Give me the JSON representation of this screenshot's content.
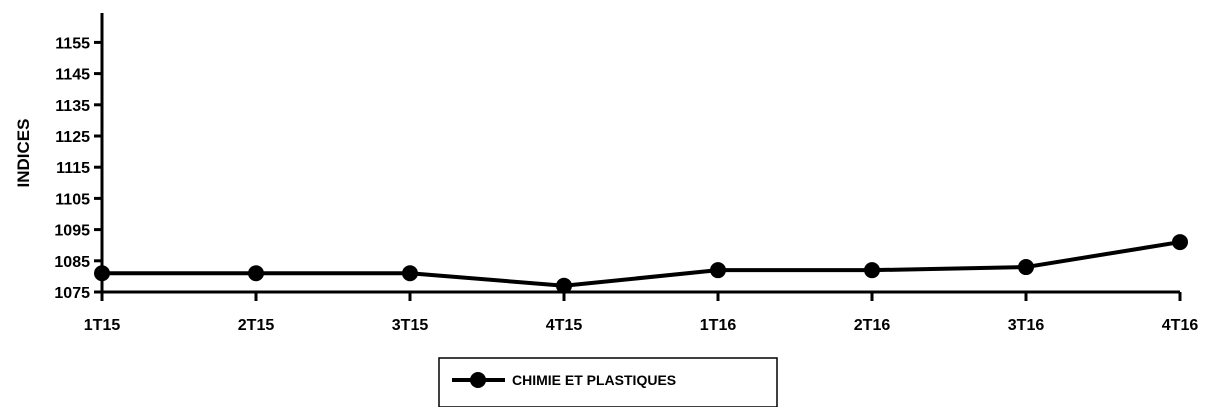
{
  "chart_data": {
    "type": "line",
    "title": "",
    "xlabel": "",
    "ylabel": "INDICES",
    "categories": [
      "1T15",
      "2T15",
      "3T15",
      "4T15",
      "1T16",
      "2T16",
      "3T16",
      "4T16"
    ],
    "series": [
      {
        "name": "CHIMIE ET PLASTIQUES",
        "values": [
          1081,
          1081,
          1081,
          1077,
          1082,
          1082,
          1083,
          1091
        ]
      }
    ],
    "yticks": [
      "1075",
      "1085",
      "1095",
      "1105",
      "1115",
      "1125",
      "1135",
      "1145",
      "1155"
    ],
    "ylim": [
      1075,
      1160
    ],
    "grid": false,
    "legend_position": "bottom",
    "colors": {
      "line": "#000000",
      "axis": "#000000"
    }
  }
}
